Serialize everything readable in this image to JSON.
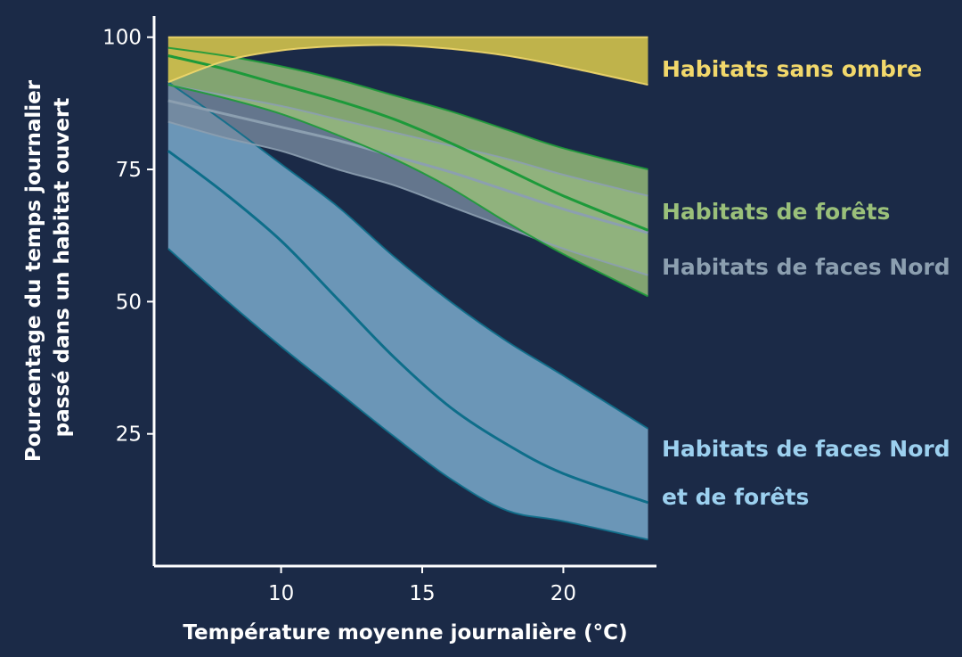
{
  "chart_data": {
    "type": "line",
    "xlabel": "Température moyenne journalière (°C)",
    "ylabel_lines": [
      "Pourcentage du temps journalier",
      "passé dans un habitat ouvert"
    ],
    "xlim": [
      5.5,
      23.3
    ],
    "ylim": [
      0,
      104
    ],
    "x_ticks": [
      10,
      15,
      20
    ],
    "y_ticks": [
      25,
      50,
      75,
      100
    ],
    "grid": false,
    "x": [
      6,
      8,
      10,
      12,
      14,
      16,
      18,
      20,
      23
    ],
    "series": [
      {
        "name": "Habitats sans ombre",
        "label_lines": [
          "Habitats sans ombre"
        ],
        "color": "#f2d86b",
        "fill": "#c8ba4c",
        "lower": [
          91.5,
          95.5,
          97.5,
          98.3,
          98.5,
          97.8,
          96.5,
          94.5,
          91
        ],
        "mean": [
          99.5,
          99.5,
          99.5,
          99.5,
          99.5,
          99.5,
          99.5,
          99.5,
          99.5
        ],
        "upper": [
          100,
          100,
          100,
          100,
          100,
          100,
          100,
          100,
          100
        ]
      },
      {
        "name": "Habitats de forêts",
        "label_lines": [
          "Habitats de forêts"
        ],
        "color": "#1d9a3a",
        "fill": "#9ac07a",
        "lower": [
          91,
          88.5,
          85.5,
          81.5,
          77,
          71.5,
          65,
          59,
          51
        ],
        "mean": [
          96.5,
          94,
          91,
          88,
          84.5,
          80,
          75,
          70,
          63.5
        ],
        "upper": [
          98,
          96.5,
          94.5,
          92,
          89,
          86,
          82.5,
          79,
          75
        ]
      },
      {
        "name": "Habitats de faces Nord",
        "label_lines": [
          "Habitats de faces Nord"
        ],
        "color": "#8c9fb0",
        "fill": "#75889c",
        "lower": [
          84,
          81,
          78.5,
          75,
          72,
          68,
          64,
          60,
          55
        ],
        "mean": [
          88,
          85.5,
          83,
          80.5,
          77.5,
          74.5,
          71,
          67.5,
          63
        ],
        "upper": [
          91,
          89,
          87,
          84.5,
          82,
          79.5,
          77,
          74,
          70
        ]
      },
      {
        "name": "Habitats de faces Nord et de forêts",
        "label_lines": [
          "Habitats de faces Nord",
          "et de forêts"
        ],
        "color": "#0e6e8a",
        "fill": "#7eafcf",
        "lower": [
          60,
          50.5,
          41.5,
          33,
          24.5,
          16.5,
          10.5,
          8.5,
          5
        ],
        "mean": [
          78.5,
          70.5,
          61.5,
          50.5,
          39.5,
          30,
          23,
          17.5,
          12
        ],
        "upper": [
          91.5,
          84,
          76,
          68,
          58.5,
          50,
          42.5,
          36,
          26
        ]
      }
    ]
  }
}
